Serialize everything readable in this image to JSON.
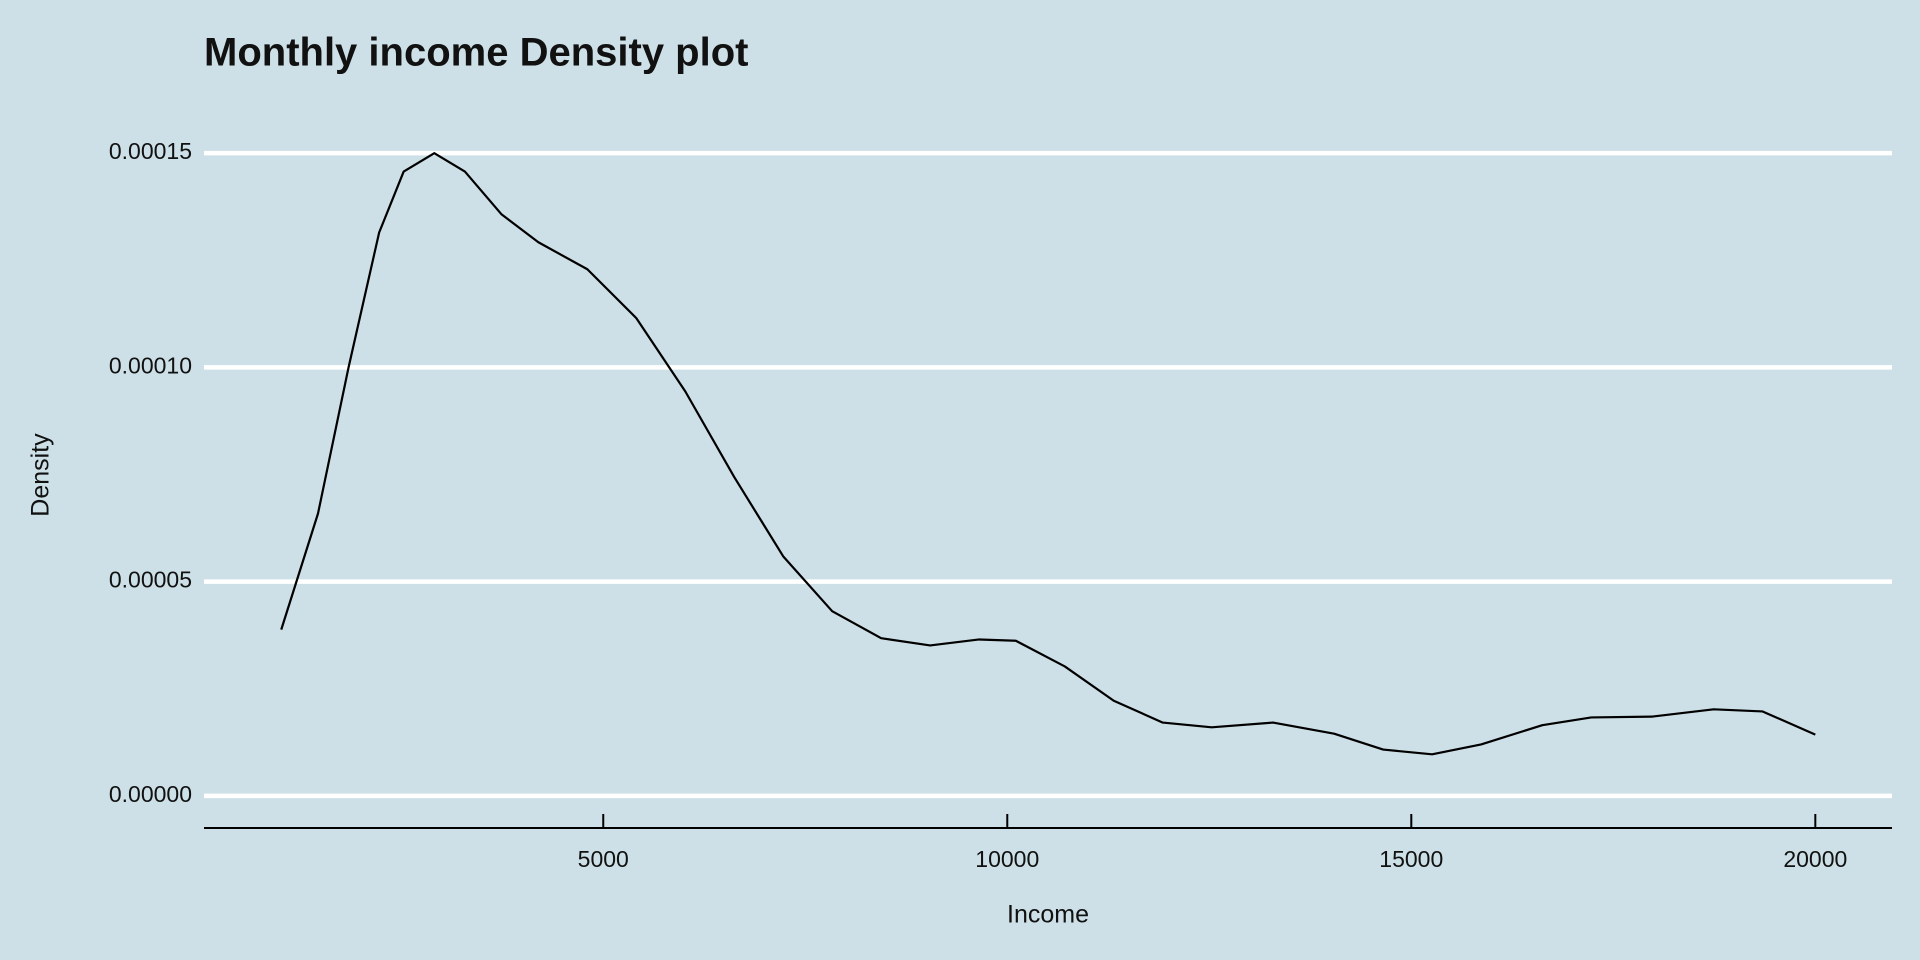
{
  "chart_data": {
    "type": "line",
    "title": "Monthly income Density plot",
    "x_label": "Income",
    "y_label": "Density",
    "x": [
      1015,
      1470,
      1848,
      2227,
      2530,
      2909,
      3288,
      3742,
      4197,
      4803,
      5409,
      6015,
      6621,
      7227,
      7833,
      8439,
      9045,
      9652,
      10106,
      10712,
      11318,
      11924,
      12530,
      13288,
      14045,
      14652,
      15258,
      15864,
      16621,
      17227,
      17985,
      18742,
      19348,
      20000
    ],
    "values": [
      3.88e-05,
      6.59e-05,
      0.0001,
      0.0001315,
      0.0001457,
      0.00015,
      0.0001457,
      0.0001357,
      0.0001292,
      0.0001229,
      0.0001115,
      9.44e-05,
      7.44e-05,
      5.59e-05,
      4.31e-05,
      3.68e-05,
      3.51e-05,
      3.65e-05,
      3.62e-05,
      3.02e-05,
      2.22e-05,
      1.71e-05,
      1.6e-05,
      1.71e-05,
      1.45e-05,
      1.08e-05,
      9.7e-06,
      1.2e-05,
      1.65e-05,
      1.83e-05,
      1.85e-05,
      2.02e-05,
      1.97e-05,
      1.43e-05
    ],
    "color": "#000000",
    "xlim": [
      59,
      20949
    ],
    "xticks": [
      5000,
      10000,
      15000,
      20000
    ],
    "ylim": [
      -7.5e-06,
      0.0001575
    ],
    "yticks": [
      {
        "value": 0,
        "label": "0.00000"
      },
      {
        "value": 5e-05,
        "label": "0.00005"
      },
      {
        "value": 0.0001,
        "label": "0.00010"
      },
      {
        "value": 0.00015,
        "label": "0.00015"
      }
    ],
    "grid": true
  }
}
